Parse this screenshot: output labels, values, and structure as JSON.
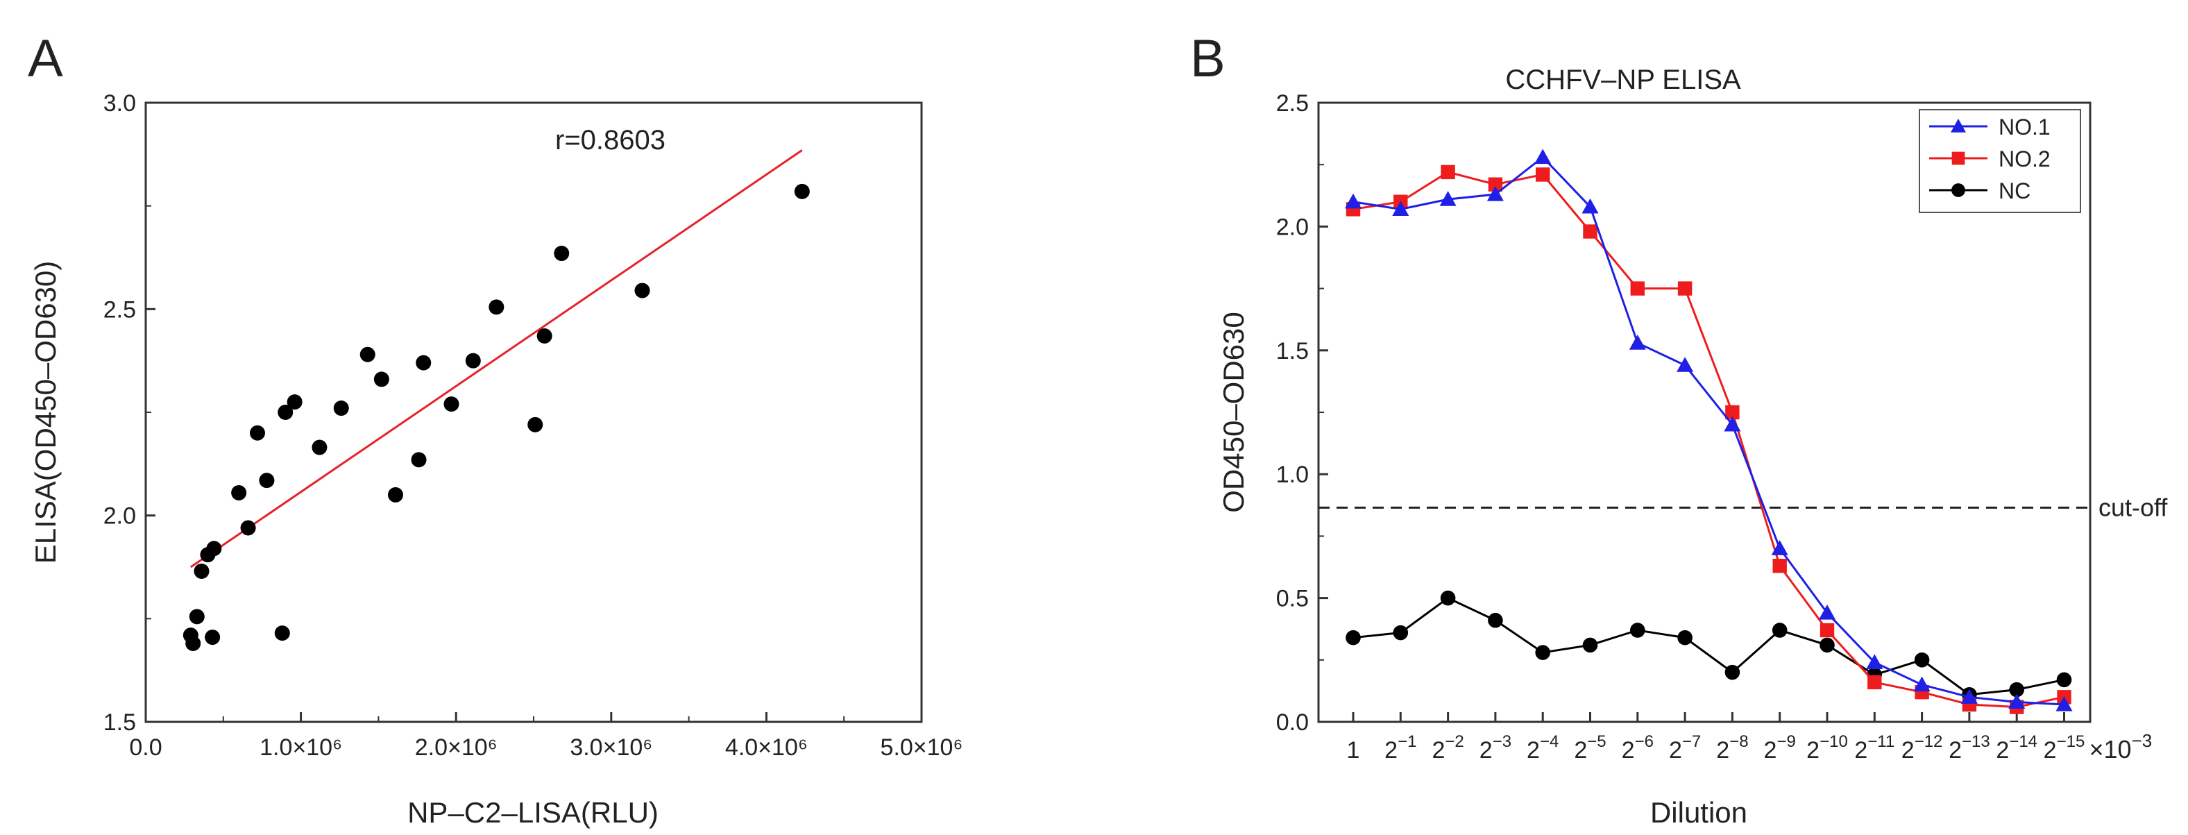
{
  "chart_data": [
    {
      "panel_label": "A",
      "type": "scatter",
      "title": "",
      "xlabel": "NP–C2–LISA(RLU)",
      "ylabel": "ELISA(OD450–OD630)",
      "xlim": [
        0,
        5000000
      ],
      "ylim": [
        1.5,
        3.0
      ],
      "x_ticks": [
        0,
        1000000,
        2000000,
        3000000,
        4000000,
        5000000
      ],
      "x_tick_labels": [
        "0.0",
        "1.0×10⁶",
        "2.0×10⁶",
        "3.0×10⁶",
        "4.0×10⁶",
        "5.0×10⁶"
      ],
      "y_ticks": [
        1.5,
        2.0,
        2.5,
        3.0
      ],
      "y_tick_labels": [
        "1.5",
        "2.0",
        "2.5",
        "3.0"
      ],
      "annotation": "r=0.8603",
      "points": [
        {
          "x": 290000,
          "y": 1.71
        },
        {
          "x": 305000,
          "y": 1.69
        },
        {
          "x": 330000,
          "y": 1.755
        },
        {
          "x": 360000,
          "y": 1.865
        },
        {
          "x": 400000,
          "y": 1.905
        },
        {
          "x": 440000,
          "y": 1.92
        },
        {
          "x": 430000,
          "y": 1.705
        },
        {
          "x": 600000,
          "y": 2.055
        },
        {
          "x": 660000,
          "y": 1.97
        },
        {
          "x": 720000,
          "y": 2.2
        },
        {
          "x": 780000,
          "y": 2.085
        },
        {
          "x": 880000,
          "y": 1.715
        },
        {
          "x": 900000,
          "y": 2.25
        },
        {
          "x": 960000,
          "y": 2.275
        },
        {
          "x": 1120000,
          "y": 2.165
        },
        {
          "x": 1260000,
          "y": 2.26
        },
        {
          "x": 1430000,
          "y": 2.39
        },
        {
          "x": 1520000,
          "y": 2.33
        },
        {
          "x": 1610000,
          "y": 2.05
        },
        {
          "x": 1760000,
          "y": 2.135
        },
        {
          "x": 1790000,
          "y": 2.37
        },
        {
          "x": 1970000,
          "y": 2.27
        },
        {
          "x": 2110000,
          "y": 2.375
        },
        {
          "x": 2260000,
          "y": 2.505
        },
        {
          "x": 2510000,
          "y": 2.22
        },
        {
          "x": 2570000,
          "y": 2.435
        },
        {
          "x": 2680000,
          "y": 2.635
        },
        {
          "x": 3200000,
          "y": 2.545
        },
        {
          "x": 4230000,
          "y": 2.785
        }
      ],
      "fit_line": {
        "x": [
          290000,
          4230000
        ],
        "y": [
          1.875,
          2.885
        ],
        "color": "#e8212b"
      },
      "marker_color": "#000000"
    },
    {
      "panel_label": "B",
      "type": "line",
      "title": "CCHFV–NP ELISA",
      "xlabel": "Dilution",
      "ylabel": "OD450–OD630",
      "ylim": [
        0,
        2.5
      ],
      "y_ticks": [
        0.0,
        0.5,
        1.0,
        1.5,
        2.0,
        2.5
      ],
      "y_tick_labels": [
        "0.0",
        "0.5",
        "1.0",
        "1.5",
        "2.0",
        "2.5"
      ],
      "categories": [
        {
          "base": "1",
          "exp": ""
        },
        {
          "base": "2",
          "exp": "−1"
        },
        {
          "base": "2",
          "exp": "−2"
        },
        {
          "base": "2",
          "exp": "−3"
        },
        {
          "base": "2",
          "exp": "−4"
        },
        {
          "base": "2",
          "exp": "−5"
        },
        {
          "base": "2",
          "exp": "−6"
        },
        {
          "base": "2",
          "exp": "−7"
        },
        {
          "base": "2",
          "exp": "−8"
        },
        {
          "base": "2",
          "exp": "−9"
        },
        {
          "base": "2",
          "exp": "−10"
        },
        {
          "base": "2",
          "exp": "−11"
        },
        {
          "base": "2",
          "exp": "−12"
        },
        {
          "base": "2",
          "exp": "−13"
        },
        {
          "base": "2",
          "exp": "−14"
        },
        {
          "base": "2",
          "exp": "−15"
        }
      ],
      "x_scale_suffix": {
        "base": "×10",
        "exp": "−3"
      },
      "cutoff": {
        "value": 0.865,
        "label": "cut-off"
      },
      "series": [
        {
          "name": "NO.1",
          "color": "#1f1fe6",
          "marker": "triangle",
          "values": [
            2.1,
            2.07,
            2.11,
            2.13,
            2.28,
            2.08,
            1.53,
            1.44,
            1.2,
            0.7,
            0.44,
            0.24,
            0.15,
            0.1,
            0.08,
            0.07
          ]
        },
        {
          "name": "NO.2",
          "color": "#ee1c1c",
          "marker": "square",
          "values": [
            2.07,
            2.1,
            2.22,
            2.17,
            2.21,
            1.98,
            1.75,
            1.75,
            1.25,
            0.63,
            0.37,
            0.16,
            0.12,
            0.07,
            0.06,
            0.1
          ]
        },
        {
          "name": "NC",
          "color": "#000000",
          "marker": "circle",
          "values": [
            0.34,
            0.36,
            0.5,
            0.41,
            0.28,
            0.31,
            0.37,
            0.34,
            0.2,
            0.37,
            0.31,
            0.19,
            0.25,
            0.11,
            0.13,
            0.17
          ]
        }
      ]
    }
  ]
}
